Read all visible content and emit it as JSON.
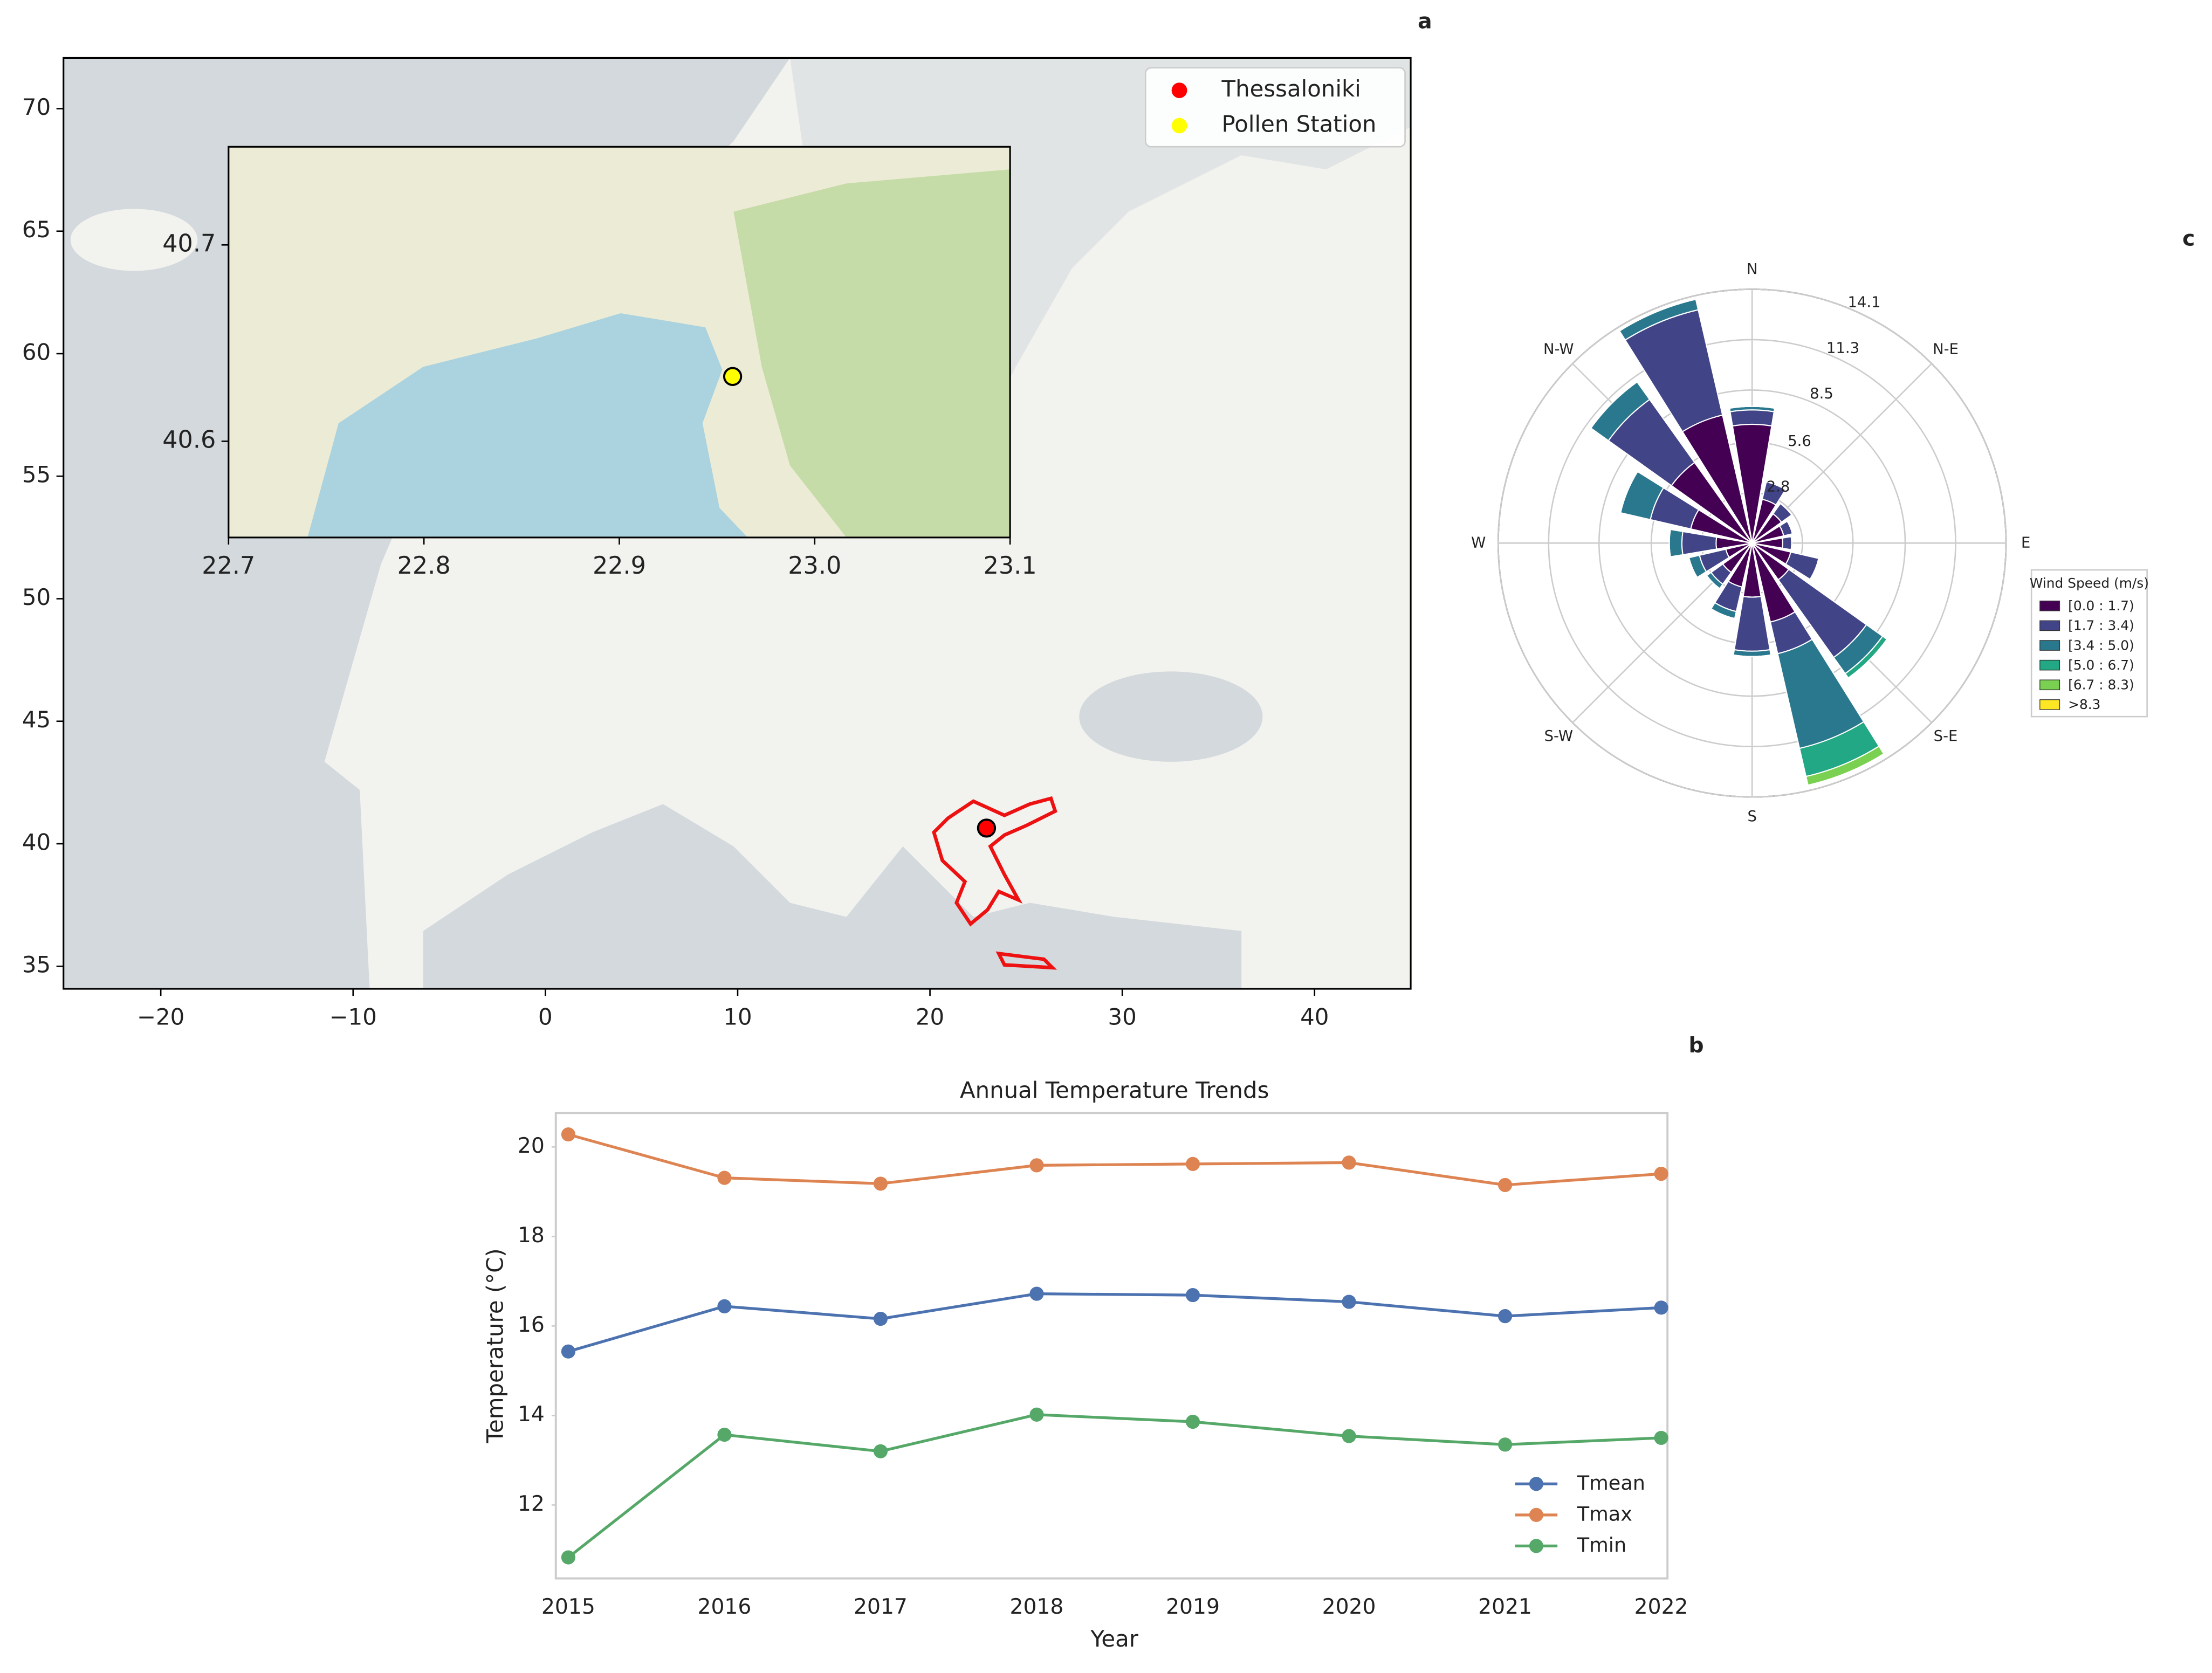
{
  "chart_data": [
    {
      "type": "map",
      "annotation": "a",
      "xlim": [
        -25.06,
        45
      ],
      "ylim": [
        34.08,
        72.07
      ],
      "xticks": [
        {
          "value": -20,
          "label": "−20"
        },
        {
          "value": -10,
          "label": "−10"
        },
        0,
        10,
        20,
        30,
        40
      ],
      "yticks": [
        35,
        40,
        45,
        50,
        55,
        60,
        65,
        70
      ],
      "points": [
        {
          "name": "Thessaloniki",
          "color": "#ff0000",
          "x": 22.94,
          "y": 40.64
        }
      ],
      "inset": {
        "xlim": [
          22.7,
          23.1
        ],
        "ylim": [
          40.551,
          40.75
        ],
        "xticks": [
          22.7,
          22.8,
          22.9,
          {
            "value": 23,
            "label": "23.0"
          },
          23.1
        ],
        "yticks": [
          40.6,
          40.7
        ],
        "points": [
          {
            "name": "Pollen Station",
            "color": "#ffff00",
            "x": 22.958,
            "y": 40.633
          }
        ]
      }
    },
    {
      "type": "line",
      "annotation": "b",
      "title": "Annual Temperature Trends",
      "x_label": "Year",
      "y_label": "Temperature (°C)",
      "x": [
        2015,
        2016,
        2017,
        2018,
        2019,
        2020,
        2021,
        2022
      ],
      "series": [
        {
          "name": "Tmean",
          "color": "#4c72b0",
          "values": [
            15.43,
            16.44,
            16.16,
            16.72,
            16.69,
            16.54,
            16.22,
            16.41
          ]
        },
        {
          "name": "Tmax",
          "color": "#dd8452",
          "values": [
            20.28,
            19.31,
            19.18,
            19.59,
            19.62,
            19.65,
            19.15,
            19.4
          ]
        },
        {
          "name": "Tmin",
          "color": "#55a868",
          "values": [
            10.83,
            13.57,
            13.2,
            14.02,
            13.86,
            13.54,
            13.35,
            13.5
          ]
        }
      ],
      "xlim": [
        2014.92,
        2022.04
      ],
      "ylim": [
        10.36,
        20.76
      ],
      "xticks": [
        2015,
        2016,
        2017,
        2018,
        2019,
        2020,
        2021,
        2022
      ],
      "yticks": [
        12,
        14,
        16,
        18,
        20
      ],
      "legend": "lower right"
    },
    {
      "type": "windrose",
      "annotation": "c",
      "legend_title": "Wind Speed (m/s)",
      "categories": [
        "N",
        null,
        "N-E",
        null,
        "E",
        null,
        "S-E",
        null,
        "S",
        null,
        "S-W",
        null,
        "W",
        null,
        "N-W",
        null
      ],
      "rlim": [
        0,
        14.1
      ],
      "rticks": [
        2.8,
        5.6,
        8.5,
        11.3,
        14.1
      ],
      "series": [
        {
          "name": "[0.0 : 1.7)",
          "color": "#440154",
          "values": [
            6.6,
            2.5,
            2.0,
            1.8,
            1.7,
            2.2,
            2.5,
            4.5,
            3.0,
            2.5,
            2.0,
            1.5,
            2.0,
            3.5,
            5.5,
            7.3
          ]
        },
        {
          "name": "[1.7 : 3.4)",
          "color": "#414487",
          "values": [
            0.8,
            1.0,
            0.7,
            0.5,
            0.5,
            1.6,
            5.3,
            1.8,
            3.0,
            1.4,
            0.8,
            1.5,
            1.9,
            2.3,
            4.3,
            6.0
          ]
        },
        {
          "name": "[3.4 : 5.0)",
          "color": "#2a788e",
          "values": [
            0.2,
            0,
            0,
            0,
            0,
            0,
            1.1,
            5.4,
            0.3,
            0.4,
            0.3,
            0.6,
            0.7,
            1.7,
            1.2,
            0.6
          ]
        },
        {
          "name": "[5.0 : 6.7)",
          "color": "#22a884",
          "values": [
            0,
            0,
            0,
            0,
            0,
            0,
            0.3,
            1.6,
            0,
            0,
            0,
            0,
            0,
            0,
            0,
            0
          ]
        },
        {
          "name": "[6.7 : 8.3)",
          "color": "#7ad151",
          "values": [
            0,
            0,
            0,
            0,
            0,
            0,
            0,
            0.5,
            0,
            0,
            0,
            0,
            0,
            0,
            0,
            0
          ]
        },
        {
          "name": ">8.3",
          "color": "#fde725",
          "values": [
            0,
            0,
            0,
            0,
            0,
            0,
            0,
            0,
            0,
            0,
            0,
            0,
            0,
            0,
            0,
            0
          ]
        }
      ]
    }
  ]
}
